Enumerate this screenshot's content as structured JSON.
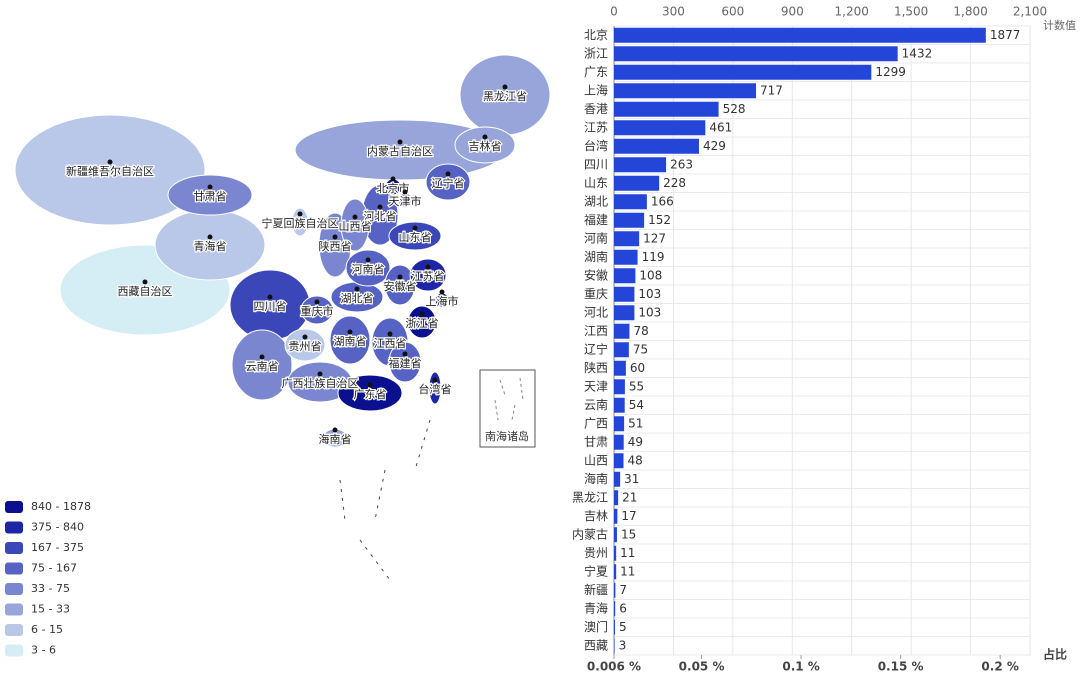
{
  "chart_data": [
    {
      "type": "map",
      "legend": [
        {
          "label": "840 - 1878",
          "min": 840,
          "max": 1878,
          "color": "#0b118e"
        },
        {
          "label": "375 - 840",
          "min": 375,
          "max": 840,
          "color": "#1d27a6"
        },
        {
          "label": "167 - 375",
          "min": 167,
          "max": 375,
          "color": "#3b46b8"
        },
        {
          "label": "75 - 167",
          "min": 75,
          "max": 167,
          "color": "#5662c4"
        },
        {
          "label": "33 - 75",
          "min": 33,
          "max": 75,
          "color": "#7a86d0"
        },
        {
          "label": "15 - 33",
          "min": 15,
          "max": 33,
          "color": "#98a5db"
        },
        {
          "label": "6 - 15",
          "min": 6,
          "max": 15,
          "color": "#b9c8e9"
        },
        {
          "label": "3 - 6",
          "min": 3,
          "max": 6,
          "color": "#d5eef6"
        }
      ],
      "regions": [
        {
          "label": "新疆维吾尔自治区",
          "value": 7
        },
        {
          "label": "西藏自治区",
          "value": 3
        },
        {
          "label": "内蒙古自治区",
          "value": 15
        },
        {
          "label": "青海省",
          "value": 6
        },
        {
          "label": "黑龙江省",
          "value": 21
        },
        {
          "label": "甘肃省",
          "value": 49
        },
        {
          "label": "四川省",
          "value": 263
        },
        {
          "label": "云南省",
          "value": 54
        },
        {
          "label": "吉林省",
          "value": 17
        },
        {
          "label": "陕西省",
          "value": 60
        },
        {
          "label": "河北省",
          "value": 103
        },
        {
          "label": "广西壮族自治区",
          "value": 51
        },
        {
          "label": "广东省",
          "value": 1299
        },
        {
          "label": "湖南省",
          "value": 119
        },
        {
          "label": "山西省",
          "value": 48
        },
        {
          "label": "湖北省",
          "value": 166
        },
        {
          "label": "河南省",
          "value": 127
        },
        {
          "label": "江西省",
          "value": 78
        },
        {
          "label": "山东省",
          "value": 228
        },
        {
          "label": "辽宁省",
          "value": 75
        },
        {
          "label": "贵州省",
          "value": 11
        },
        {
          "label": "安徽省",
          "value": 108
        },
        {
          "label": "福建省",
          "value": 152
        },
        {
          "label": "江苏省",
          "value": 461
        },
        {
          "label": "重庆市",
          "value": 103
        },
        {
          "label": "浙江省",
          "value": 1432
        },
        {
          "label": "宁夏回族自治区",
          "value": 11
        },
        {
          "label": "海南省",
          "value": 31
        },
        {
          "label": "台湾省",
          "value": 429
        },
        {
          "label": "北京市",
          "value": 1877
        },
        {
          "label": "天津市",
          "value": 55
        },
        {
          "label": "上海市",
          "value": 717
        }
      ],
      "inset_label": "南海诸岛"
    },
    {
      "type": "bar",
      "categories": [
        "北京",
        "浙江",
        "广东",
        "上海",
        "香港",
        "江苏",
        "台湾",
        "四川",
        "山东",
        "湖北",
        "福建",
        "河南",
        "湖南",
        "安徽",
        "重庆",
        "河北",
        "江西",
        "辽宁",
        "陕西",
        "天津",
        "云南",
        "广西",
        "甘肃",
        "山西",
        "海南",
        "黑龙江",
        "吉林",
        "内蒙古",
        "贵州",
        "宁夏",
        "新疆",
        "青海",
        "澳门",
        "西藏"
      ],
      "values": [
        1877,
        1432,
        1299,
        717,
        528,
        461,
        429,
        263,
        228,
        166,
        152,
        127,
        119,
        108,
        103,
        103,
        78,
        75,
        60,
        55,
        54,
        51,
        49,
        48,
        31,
        21,
        17,
        15,
        11,
        11,
        7,
        6,
        5,
        3
      ],
      "color": "#2446d8",
      "xlim": [
        0,
        2100
      ],
      "xticks": [
        0,
        300,
        600,
        900,
        {
          "value": 1200,
          "label": "1,200"
        },
        {
          "value": 1500,
          "label": "1,500"
        },
        {
          "value": 1800,
          "label": "1,800"
        },
        {
          "value": 2100,
          "label": "2,100"
        }
      ],
      "xlabel": "计数值",
      "x2lim": [
        0.006,
        0.215
      ],
      "x2ticks": [
        {
          "value": 0.006,
          "label": "0.006 %"
        },
        {
          "value": 0.05,
          "label": "0.05 %"
        },
        {
          "value": 0.1,
          "label": "0.1 %"
        },
        {
          "value": 0.15,
          "label": "0.15 %"
        },
        {
          "value": 0.2,
          "label": "0.2 %"
        }
      ],
      "x2label": "占比",
      "grid": true
    }
  ]
}
